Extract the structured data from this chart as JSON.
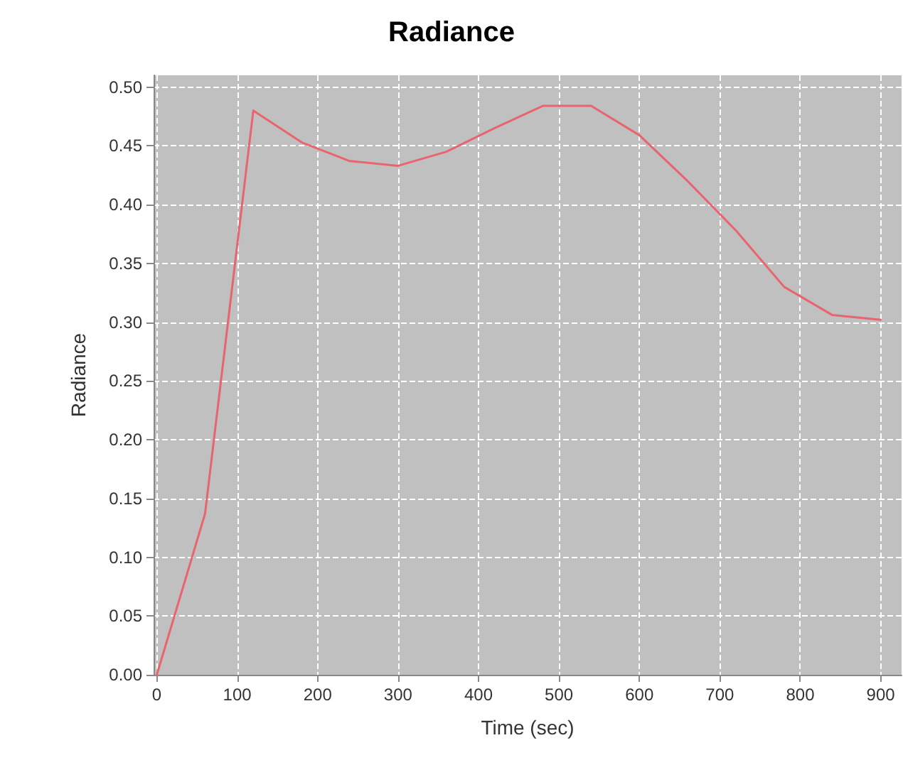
{
  "chart_data": {
    "type": "line",
    "title": "Radiance",
    "xlabel": "Time (sec)",
    "ylabel": "Radiance",
    "x": [
      0,
      60,
      120,
      180,
      240,
      300,
      360,
      420,
      480,
      540,
      600,
      660,
      720,
      780,
      840,
      900
    ],
    "series": [
      {
        "color": "#e8646e",
        "values": [
          0,
          0.137,
          0.48,
          0.453,
          0.437,
          0.433,
          0.445,
          0.465,
          0.484,
          0.484,
          0.459,
          0.42,
          0.378,
          0.33,
          0.306,
          0.302
        ]
      }
    ],
    "xlim": [
      -4,
      926
    ],
    "xticks": [
      0,
      100,
      200,
      300,
      400,
      500,
      600,
      700,
      800,
      900
    ],
    "ylim": [
      0,
      0.51
    ],
    "yticks": [
      {
        "value": 0,
        "label": "0.00"
      },
      {
        "value": 0.05,
        "label": "0.05"
      },
      {
        "value": 0.1,
        "label": "0.10"
      },
      {
        "value": 0.15,
        "label": "0.15"
      },
      {
        "value": 0.2,
        "label": "0.20"
      },
      {
        "value": 0.25,
        "label": "0.25"
      },
      {
        "value": 0.3,
        "label": "0.30"
      },
      {
        "value": 0.35,
        "label": "0.35"
      },
      {
        "value": 0.4,
        "label": "0.40"
      },
      {
        "value": 0.45,
        "label": "0.45"
      },
      {
        "value": 0.5,
        "label": "0.50"
      }
    ],
    "grid": true,
    "marker": "none",
    "line_style": "solid"
  }
}
